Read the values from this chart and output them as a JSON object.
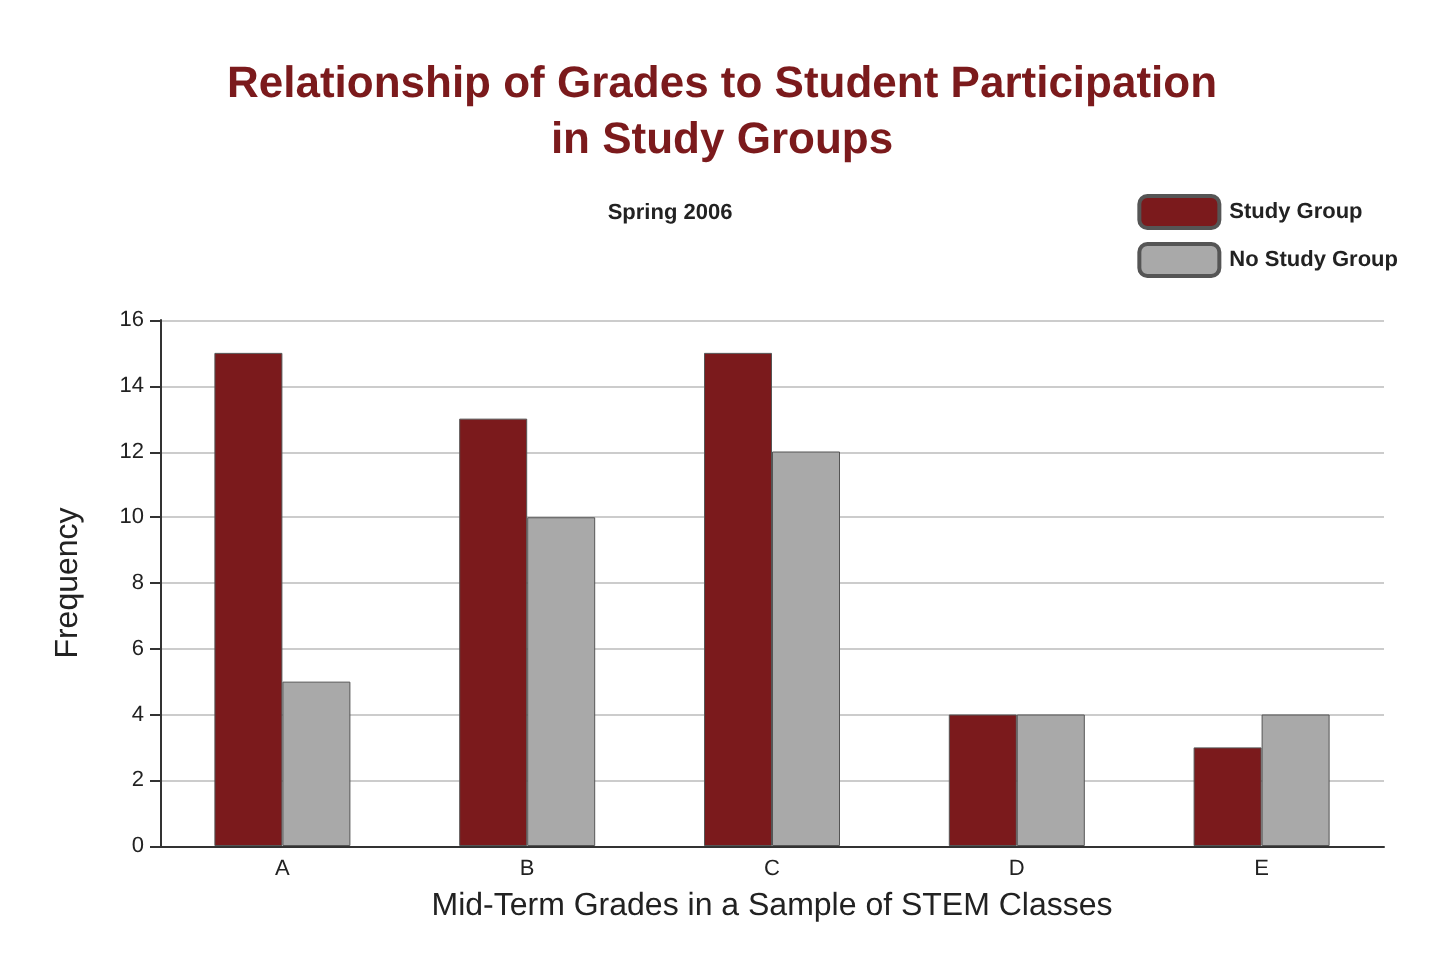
{
  "chart_data": {
    "type": "bar",
    "title": "Relationship of Grades to Student Participation\nin Study Groups",
    "subtitle": "Spring 2006",
    "categories": [
      "A",
      "B",
      "C",
      "D",
      "E"
    ],
    "series": [
      {
        "name": "Study Group",
        "color": "#7b1a1c",
        "values": [
          15,
          13,
          15,
          4,
          3
        ]
      },
      {
        "name": "No Study Group",
        "color": "#a9a9a9",
        "values": [
          5,
          10,
          12,
          4,
          4
        ]
      }
    ],
    "xlabel": "Mid-Term Grades in a Sample of STEM Classes",
    "ylabel": "Frequency",
    "ylim": [
      0,
      16
    ],
    "yticks": [
      0,
      2,
      4,
      6,
      8,
      10,
      12,
      14,
      16
    ],
    "grid": "y",
    "legend": "top right"
  }
}
